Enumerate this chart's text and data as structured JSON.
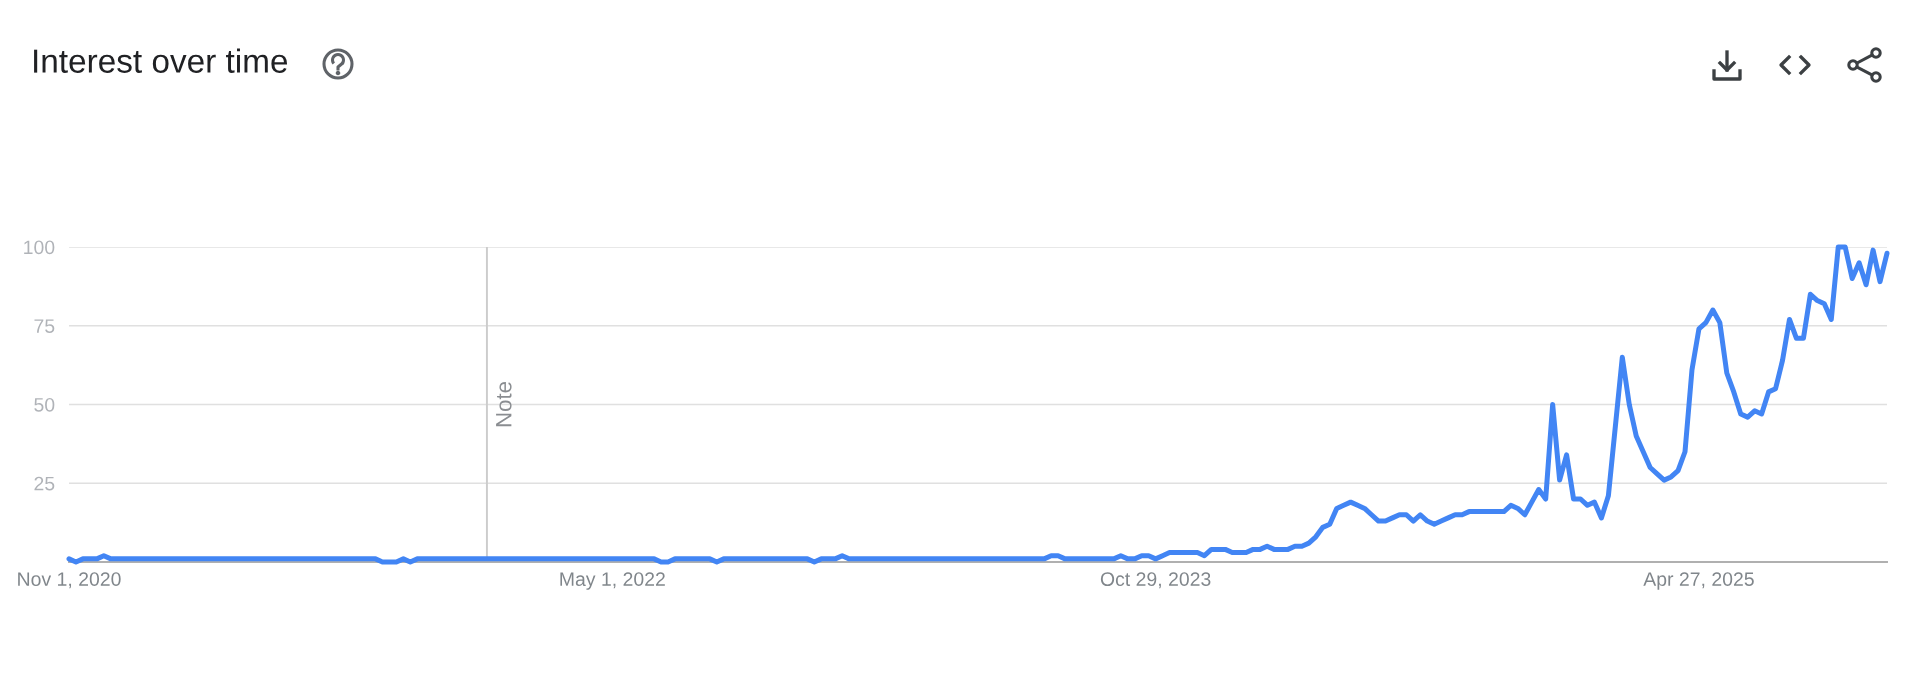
{
  "chart_data": {
    "type": "line",
    "title": "Interest over time",
    "color": "#4285f4",
    "x": [
      "2020-11-01",
      "2020-11-08",
      "2020-11-15",
      "2020-11-29",
      "2020-12-06",
      "2020-12-13",
      "2021-09-05",
      "2021-09-12",
      "2021-09-26",
      "2021-10-03",
      "2021-10-10",
      "2021-10-17",
      "2022-06-12",
      "2022-06-19",
      "2022-06-26",
      "2022-07-03",
      "2022-08-07",
      "2022-08-14",
      "2022-08-21",
      "2022-11-13",
      "2022-11-20",
      "2022-11-27",
      "2022-12-11",
      "2022-12-18",
      "2022-12-25",
      "2023-07-09",
      "2023-07-16",
      "2023-07-23",
      "2023-07-30",
      "2023-09-17",
      "2023-09-24",
      "2023-10-01",
      "2023-10-08",
      "2023-10-15",
      "2023-10-22",
      "2023-10-29",
      "2023-11-05",
      "2023-11-12",
      "2023-12-10",
      "2023-12-17",
      "2023-12-24",
      "2024-01-07",
      "2024-01-14",
      "2024-01-28",
      "2024-02-04",
      "2024-02-11",
      "2024-02-18",
      "2024-02-25",
      "2024-03-10",
      "2024-03-17",
      "2024-03-24",
      "2024-03-31",
      "2024-04-07",
      "2024-04-14",
      "2024-04-21",
      "2024-04-28",
      "2024-05-05",
      "2024-05-12",
      "2024-05-19",
      "2024-05-26",
      "2024-06-02",
      "2024-06-09",
      "2024-06-16",
      "2024-06-23",
      "2024-06-30",
      "2024-07-07",
      "2024-07-14",
      "2024-07-21",
      "2024-07-28",
      "2024-08-04",
      "2024-08-11",
      "2024-08-18",
      "2024-08-25",
      "2024-09-01",
      "2024-09-08",
      "2024-10-13",
      "2024-10-20",
      "2024-10-27",
      "2024-11-03",
      "2024-11-10",
      "2024-11-17",
      "2024-11-24",
      "2024-12-01",
      "2024-12-08",
      "2024-12-15",
      "2024-12-22",
      "2024-12-29",
      "2025-01-05",
      "2025-01-12",
      "2025-01-19",
      "2025-01-26",
      "2025-02-02",
      "2025-02-09",
      "2025-02-16",
      "2025-02-23",
      "2025-03-02",
      "2025-03-09",
      "2025-03-16",
      "2025-03-23",
      "2025-03-30",
      "2025-04-06",
      "2025-04-13",
      "2025-04-20",
      "2025-04-27",
      "2025-05-04",
      "2025-05-11",
      "2025-05-18",
      "2025-05-25",
      "2025-06-01",
      "2025-06-08",
      "2025-06-15",
      "2025-06-22",
      "2025-06-29",
      "2025-07-06",
      "2025-07-13",
      "2025-07-20",
      "2025-07-27",
      "2025-08-03",
      "2025-08-10",
      "2025-08-17",
      "2025-08-24",
      "2025-08-31",
      "2025-09-07",
      "2025-09-14",
      "2025-09-21",
      "2025-09-28",
      "2025-10-05",
      "2025-10-12",
      "2025-10-19",
      "2025-10-26",
      "2025-11-02"
    ],
    "values": [
      1,
      0,
      1,
      1,
      2,
      1,
      1,
      0,
      0,
      1,
      0,
      1,
      1,
      0,
      0,
      1,
      1,
      0,
      1,
      1,
      0,
      1,
      1,
      2,
      1,
      1,
      2,
      2,
      1,
      1,
      2,
      1,
      1,
      2,
      2,
      1,
      2,
      3,
      3,
      2,
      4,
      4,
      3,
      3,
      4,
      4,
      5,
      4,
      4,
      5,
      5,
      6,
      8,
      11,
      12,
      17,
      18,
      19,
      18,
      17,
      15,
      13,
      13,
      14,
      15,
      15,
      13,
      15,
      13,
      12,
      13,
      14,
      15,
      15,
      16,
      16,
      18,
      17,
      15,
      19,
      23,
      20,
      50,
      26,
      34,
      20,
      20,
      18,
      19,
      14,
      21,
      43,
      65,
      50,
      40,
      35,
      30,
      28,
      26,
      27,
      29,
      35,
      61,
      74,
      76,
      80,
      76,
      60,
      54,
      47,
      46,
      48,
      47,
      54,
      55,
      64,
      77,
      71,
      71,
      85,
      83,
      82,
      77,
      100,
      100,
      90,
      95,
      88,
      99,
      89,
      98
    ],
    "xlim": [
      "2020-11-01",
      "2025-11-02"
    ],
    "xticks": [
      {
        "value": "2020-11-01",
        "label": "Nov 1, 2020"
      },
      {
        "value": "2022-05-01",
        "label": "May 1, 2022"
      },
      {
        "value": "2023-10-29",
        "label": "Oct 29, 2023"
      },
      {
        "value": "2025-04-27",
        "label": "Apr 27, 2025"
      }
    ],
    "ylim": [
      0,
      100
    ],
    "yticks": [
      25,
      50,
      75,
      100
    ],
    "grid": "y",
    "ref_lines": [
      {
        "axis": "x",
        "value": "2021-12-26",
        "label": "Note",
        "color": "#cccccc"
      }
    ]
  }
}
